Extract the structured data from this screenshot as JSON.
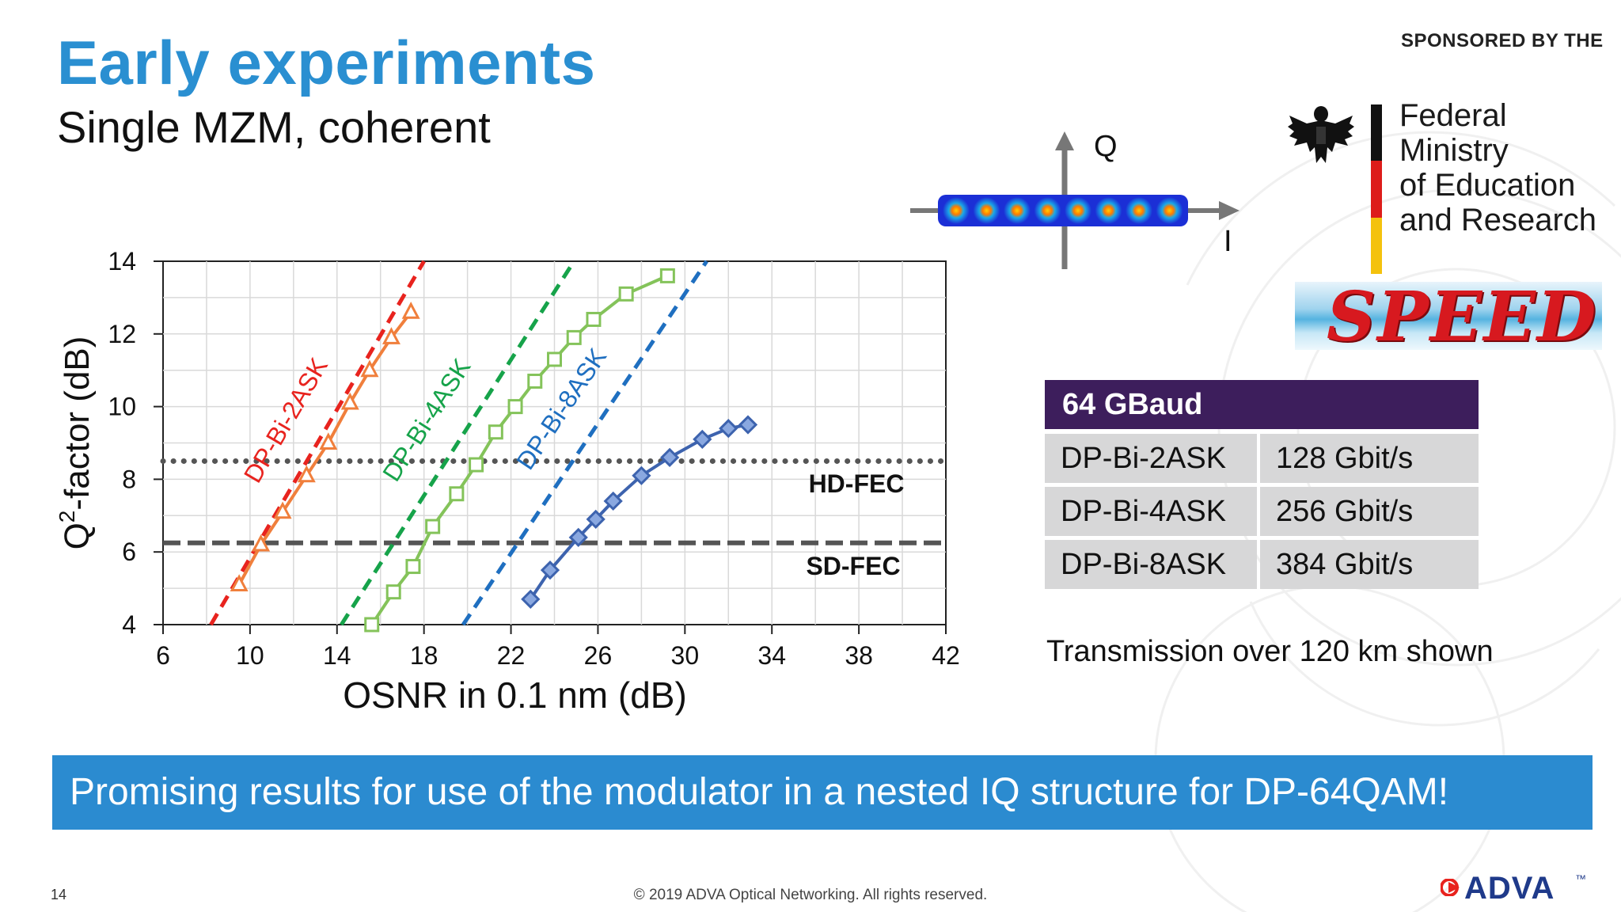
{
  "slide": {
    "title": "Early experiments",
    "subtitle": "Single MZM, coherent",
    "sponsor_label": "SPONSORED BY THE",
    "ministry_lines": [
      "Federal Ministry",
      "of Education",
      "and Research"
    ],
    "speed_logo_text": "SPEED",
    "constellation": {
      "q_label": "Q",
      "i_label": "I",
      "point_count": 8
    },
    "table": {
      "header": "64 GBaud",
      "rows": [
        {
          "format": "DP-Bi-2ASK",
          "rate": "128 Gbit/s"
        },
        {
          "format": "DP-Bi-4ASK",
          "rate": "256 Gbit/s"
        },
        {
          "format": "DP-Bi-8ASK",
          "rate": "384 Gbit/s"
        }
      ]
    },
    "transmission_note": "Transmission over 120 km shown",
    "banner": "Promising results for use of the modulator in a nested IQ structure for DP-64QAM!",
    "page_number": "14",
    "footer": "© 2019 ADVA Optical Networking. All rights reserved.",
    "brand": "ADVA",
    "brand_mark": "™"
  },
  "colors": {
    "title": "#2a8fd1",
    "banner": "#2b8bd0",
    "table_header": "#3d1e5c",
    "table_cell": "#d7d7d8",
    "red_theory": "#e8231e",
    "orange_meas": "#f07f3c",
    "green_theory": "#16a34a",
    "green_meas": "#84c35a",
    "blue_theory": "#1f6fc0",
    "blue_meas": "#3d63ae",
    "fec_line": "#555555"
  },
  "chart_data": {
    "type": "line",
    "xlabel": "OSNR  in 0.1 nm (dB)",
    "ylabel_main": "Q",
    "ylabel_sup": "2",
    "ylabel_rest": "-factor (dB)",
    "xlim": [
      6,
      42
    ],
    "ylim": [
      4,
      14
    ],
    "xticks": [
      "6",
      "10",
      "14",
      "18",
      "22",
      "26",
      "30",
      "34",
      "38",
      "42"
    ],
    "yticks": [
      "4",
      "6",
      "8",
      "10",
      "12",
      "14"
    ],
    "grid": true,
    "reference_lines": [
      {
        "name": "HD-FEC",
        "y": 8.5,
        "style": "dotted"
      },
      {
        "name": "SD-FEC",
        "y": 6.25,
        "style": "dashed"
      }
    ],
    "theory_lines": [
      {
        "name": "DP-Bi-2ASK",
        "color": "red_theory",
        "x": [
          8.2,
          18.0
        ],
        "y": [
          4.0,
          14.0
        ]
      },
      {
        "name": "DP-Bi-4ASK",
        "color": "green_theory",
        "x": [
          14.2,
          24.9
        ],
        "y": [
          4.0,
          14.0
        ]
      },
      {
        "name": "DP-Bi-8ASK",
        "color": "blue_theory",
        "x": [
          19.8,
          31.0
        ],
        "y": [
          4.0,
          14.0
        ]
      }
    ],
    "series": [
      {
        "name": "DP-Bi-2ASK",
        "marker": "triangle",
        "color": "orange_meas",
        "x": [
          9.5,
          10.5,
          11.5,
          12.6,
          13.6,
          14.6,
          15.5,
          16.5,
          17.4
        ],
        "y": [
          5.1,
          6.2,
          7.1,
          8.1,
          9.0,
          10.1,
          11.0,
          11.9,
          12.6
        ]
      },
      {
        "name": "DP-Bi-4ASK",
        "marker": "square",
        "color": "green_meas",
        "x": [
          15.6,
          16.6,
          17.5,
          18.4,
          19.5,
          20.4,
          21.3,
          22.2,
          23.1,
          24.0,
          24.9,
          25.8,
          27.3,
          29.2
        ],
        "y": [
          4.0,
          4.9,
          5.6,
          6.7,
          7.6,
          8.4,
          9.3,
          10.0,
          10.7,
          11.3,
          11.9,
          12.4,
          13.1,
          13.6
        ]
      },
      {
        "name": "DP-Bi-8ASK",
        "marker": "diamond",
        "color": "blue_meas",
        "x": [
          22.9,
          23.8,
          25.1,
          25.9,
          26.7,
          28.0,
          29.3,
          30.8,
          32.0,
          32.9
        ],
        "y": [
          4.7,
          5.5,
          6.4,
          6.9,
          7.4,
          8.1,
          8.6,
          9.1,
          9.4,
          9.5
        ]
      }
    ]
  }
}
